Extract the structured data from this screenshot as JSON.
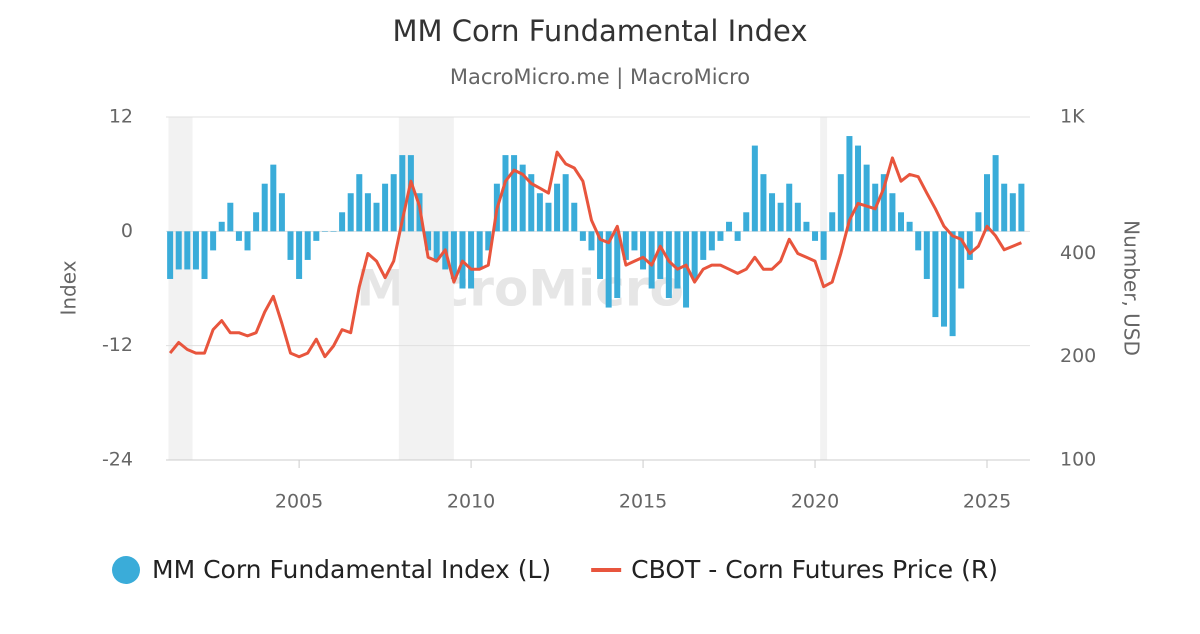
{
  "chart_data": {
    "type": "bar-line",
    "title": "MM Corn Fundamental Index",
    "subtitle": "MacroMicro.me | MacroMicro",
    "watermark": "MacroMicro",
    "ylabel": "Index",
    "y2label": "Number, USD",
    "xlim": [
      2001.13,
      2026.25
    ],
    "xticks": [
      2005,
      2010,
      2015,
      2020,
      2025
    ],
    "ylim": [
      -24,
      12
    ],
    "yticks": [
      -24,
      -12,
      0,
      12
    ],
    "y2lim": [
      100,
      1000
    ],
    "y2ticks": [
      100,
      200,
      400,
      {
        "value": 1000,
        "label": "1K"
      }
    ],
    "y2log": true,
    "grid": true,
    "legend": "bottom",
    "bands": [
      [
        2001.2,
        2001.9
      ],
      [
        2007.9,
        2009.5
      ],
      [
        2020.15,
        2020.35
      ]
    ],
    "band_color": "#f2f2f2",
    "x": [
      2001.25,
      2001.5,
      2001.75,
      2002,
      2002.25,
      2002.5,
      2002.75,
      2003,
      2003.25,
      2003.5,
      2003.75,
      2004,
      2004.25,
      2004.5,
      2004.75,
      2005,
      2005.25,
      2005.5,
      2005.75,
      2006,
      2006.25,
      2006.5,
      2006.75,
      2007,
      2007.25,
      2007.5,
      2007.75,
      2008,
      2008.25,
      2008.5,
      2008.75,
      2009,
      2009.25,
      2009.5,
      2009.75,
      2010,
      2010.25,
      2010.5,
      2010.75,
      2011,
      2011.25,
      2011.5,
      2011.75,
      2012,
      2012.25,
      2012.5,
      2012.75,
      2013,
      2013.25,
      2013.5,
      2013.75,
      2014,
      2014.25,
      2014.5,
      2014.75,
      2015,
      2015.25,
      2015.5,
      2015.75,
      2016,
      2016.25,
      2016.5,
      2016.75,
      2017,
      2017.25,
      2017.5,
      2017.75,
      2018,
      2018.25,
      2018.5,
      2018.75,
      2019,
      2019.25,
      2019.5,
      2019.75,
      2020,
      2020.25,
      2020.5,
      2020.75,
      2021,
      2021.25,
      2021.5,
      2021.75,
      2022,
      2022.25,
      2022.5,
      2022.75,
      2023,
      2023.25,
      2023.5,
      2023.75,
      2024,
      2024.25,
      2024.5,
      2024.75,
      2025,
      2025.25,
      2025.5,
      2025.75,
      2026
    ],
    "series": [
      {
        "name": "MM Corn Fundamental Index (L)",
        "type": "bar",
        "axis": "y",
        "color": "#3aacd9",
        "values": [
          -5,
          -4,
          -4,
          -4,
          -5,
          -2,
          1,
          3,
          -1,
          -2,
          2,
          5,
          7,
          4,
          -3,
          -5,
          -3,
          -1,
          0,
          0,
          2,
          4,
          6,
          4,
          3,
          5,
          6,
          8,
          8,
          4,
          -2,
          -3,
          -4,
          -5,
          -6,
          -6,
          -4,
          -2,
          5,
          8,
          8,
          7,
          6,
          4,
          3,
          5,
          6,
          3,
          -1,
          -2,
          -5,
          -8,
          -7,
          -3,
          -2,
          -4,
          -6,
          -5,
          -7,
          -6,
          -8,
          -5,
          -3,
          -2,
          -1,
          1,
          -1,
          2,
          9,
          6,
          4,
          3,
          5,
          3,
          1,
          -1,
          -3,
          2,
          6,
          10,
          9,
          7,
          5,
          6,
          4,
          2,
          1,
          -2,
          -5,
          -9,
          -10,
          -11,
          -6,
          -3,
          2,
          6,
          8,
          5,
          4,
          5
        ]
      },
      {
        "name": "CBOT - Corn Futures Price (R)",
        "type": "line",
        "axis": "y2",
        "color": "#e8553d",
        "values": [
          205,
          220,
          210,
          205,
          205,
          240,
          255,
          235,
          235,
          230,
          235,
          270,
          300,
          250,
          205,
          200,
          205,
          225,
          200,
          215,
          240,
          235,
          320,
          400,
          380,
          340,
          380,
          500,
          650,
          550,
          390,
          380,
          410,
          330,
          380,
          360,
          360,
          370,
          540,
          650,
          700,
          680,
          640,
          620,
          600,
          790,
          730,
          710,
          650,
          500,
          440,
          430,
          480,
          370,
          380,
          390,
          370,
          420,
          380,
          360,
          370,
          330,
          360,
          370,
          370,
          360,
          350,
          360,
          390,
          360,
          360,
          380,
          440,
          400,
          390,
          380,
          320,
          330,
          400,
          500,
          560,
          550,
          540,
          620,
          760,
          650,
          680,
          670,
          600,
          540,
          480,
          450,
          440,
          400,
          420,
          480,
          450,
          410,
          420,
          430
        ]
      }
    ]
  }
}
